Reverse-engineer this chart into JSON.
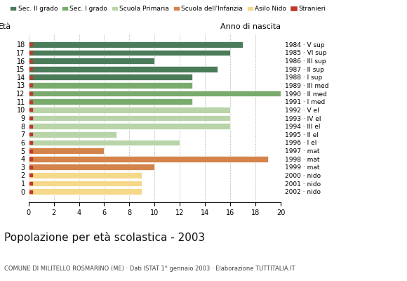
{
  "ages": [
    18,
    17,
    16,
    15,
    14,
    13,
    12,
    11,
    10,
    9,
    8,
    7,
    6,
    5,
    4,
    3,
    2,
    1,
    0
  ],
  "values": [
    17,
    16,
    10,
    15,
    13,
    13,
    20,
    13,
    16,
    16,
    16,
    7,
    12,
    6,
    19,
    10,
    9,
    9,
    9
  ],
  "categories": [
    "Sec. II grado",
    "Sec. II grado",
    "Sec. II grado",
    "Sec. II grado",
    "Sec. II grado",
    "Sec. I grado",
    "Sec. I grado",
    "Sec. I grado",
    "Scuola Primaria",
    "Scuola Primaria",
    "Scuola Primaria",
    "Scuola Primaria",
    "Scuola Primaria",
    "Scuola dell'Infanzia",
    "Scuola dell'Infanzia",
    "Scuola dell'Infanzia",
    "Asilo Nido",
    "Asilo Nido",
    "Asilo Nido"
  ],
  "anno": [
    "1984 · V sup",
    "1985 · VI sup",
    "1986 · III sup",
    "1987 · II sup",
    "1988 · I sup",
    "1989 · III med",
    "1990 · II med",
    "1991 · I med",
    "1992 · V el",
    "1993 · IV el",
    "1994 · III el",
    "1995 · II el",
    "1996 · I el",
    "1997 · mat",
    "1998 · mat",
    "1999 · mat",
    "2000 · nido",
    "2001 · nido",
    "2002 · nido"
  ],
  "colors": {
    "Sec. II grado": "#4a7c59",
    "Sec. I grado": "#7aab6e",
    "Scuola Primaria": "#b8d4a8",
    "Scuola dell'Infanzia": "#d4844a",
    "Asilo Nido": "#f5d88a",
    "Stranieri": "#c0392b"
  },
  "legend_order": [
    "Sec. II grado",
    "Sec. I grado",
    "Scuola Primaria",
    "Scuola dell'Infanzia",
    "Asilo Nido",
    "Stranieri"
  ],
  "title": "Popolazione per età scolastica - 2003",
  "subtitle": "COMUNE DI MILITELLO ROSMARINO (ME) · Dati ISTAT 1° gennaio 2003 · Elaborazione TUTTITALIA.IT",
  "xlabel_eta": "Età",
  "xlabel_anno": "Anno di nascita",
  "xlim": [
    0,
    20
  ],
  "xticks": [
    0,
    2,
    4,
    6,
    8,
    10,
    12,
    14,
    16,
    18,
    20
  ],
  "bg_color": "#ffffff",
  "grid_color": "#aaaaaa"
}
